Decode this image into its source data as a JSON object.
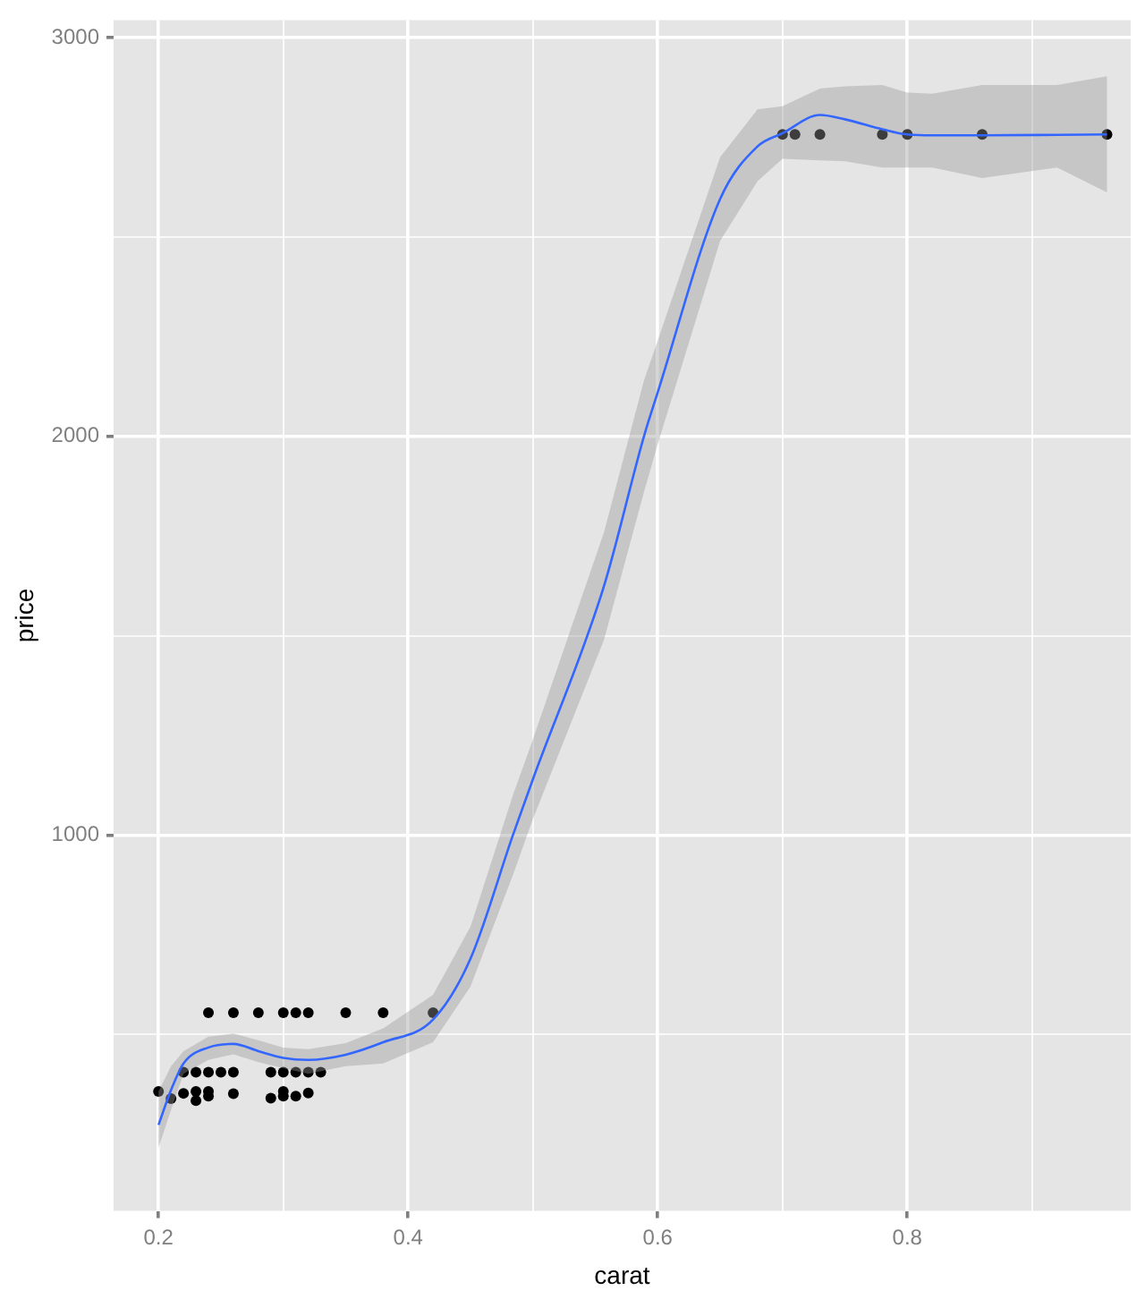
{
  "chart_data": {
    "type": "scatter",
    "xlabel": "carat",
    "ylabel": "price",
    "xlim": [
      0.164,
      0.979
    ],
    "ylim": [
      57,
      3044
    ],
    "xticks": [
      0.2,
      {
        "value": 0.3,
        "label": null
      },
      0.4,
      {
        "value": 0.5,
        "label": null
      },
      0.6,
      {
        "value": 0.7,
        "label": null
      },
      0.8,
      {
        "value": 0.9,
        "label": null
      }
    ],
    "yticks": [
      {
        "value": 500,
        "label": null
      },
      1000,
      {
        "value": 1500,
        "label": null
      },
      2000,
      {
        "value": 2500,
        "label": null
      },
      3000
    ],
    "grid": true,
    "series": [
      {
        "type": "scatter",
        "marker": "circle",
        "color": "#000000",
        "x": [
          0.24,
          0.26,
          0.28,
          0.3,
          0.31,
          0.32,
          0.35,
          0.38,
          0.42,
          0.22,
          0.23,
          0.24,
          0.25,
          0.26,
          0.29,
          0.3,
          0.31,
          0.32,
          0.33,
          0.2,
          0.21,
          0.22,
          0.23,
          0.23,
          0.24,
          0.24,
          0.26,
          0.29,
          0.3,
          0.3,
          0.31,
          0.32,
          0.7,
          0.71,
          0.73,
          0.78,
          0.8,
          0.86,
          0.96
        ],
        "values": [
          554,
          554,
          554,
          554,
          554,
          554,
          554,
          554,
          554,
          405,
          405,
          405,
          405,
          405,
          405,
          405,
          405,
          405,
          405,
          357,
          339,
          352,
          334,
          357,
          345,
          357,
          351,
          340,
          357,
          345,
          345,
          353,
          2757,
          2757,
          2757,
          2757,
          2757,
          2757,
          2757
        ]
      },
      {
        "type": "line",
        "marker": "none",
        "color": "#3366ff",
        "x": [
          0.2,
          0.21,
          0.22,
          0.24,
          0.26,
          0.28,
          0.3,
          0.32,
          0.35,
          0.38,
          0.42,
          0.45,
          0.484,
          0.5,
          0.557,
          0.589,
          0.6,
          0.65,
          0.68,
          0.7,
          0.73,
          0.75,
          0.78,
          0.8,
          0.82,
          0.86,
          0.92,
          0.96
        ],
        "values": [
          273,
          360,
          427,
          467,
          476,
          458,
          441,
          436,
          449,
          480,
          537,
          690,
          1000,
          1140,
          1625,
          2000,
          2110,
          2595,
          2727,
          2760,
          2806,
          2795,
          2770,
          2757,
          2755,
          2755,
          2756,
          2757
        ],
        "lower": [
          216,
          310,
          401,
          436,
          450,
          430,
          415,
          401,
          420,
          427,
          480,
          620,
          900,
          1040,
          1490,
          1860,
          1980,
          2490,
          2640,
          2696,
          2692,
          2690,
          2674,
          2674,
          2674,
          2648,
          2674,
          2612
        ],
        "upper": [
          357,
          420,
          458,
          494,
          502,
          485,
          467,
          463,
          478,
          515,
          599,
          770,
          1100,
          1240,
          1760,
          2140,
          2240,
          2700,
          2820,
          2828,
          2872,
          2878,
          2881,
          2862,
          2859,
          2881,
          2881,
          2903
        ]
      }
    ]
  }
}
